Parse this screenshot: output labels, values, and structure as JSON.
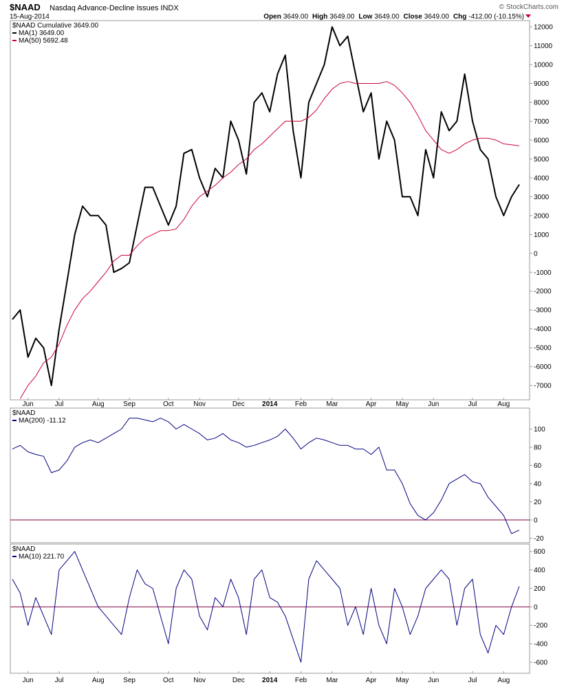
{
  "header": {
    "symbol": "$NAAD",
    "name": "Nasdaq Advance-Decline Issues INDX",
    "date": "15-Aug-2014",
    "watermark": "© StockCharts.com",
    "stats": [
      {
        "label": "Open",
        "value": "3649.00"
      },
      {
        "label": "High",
        "value": "3649.00"
      },
      {
        "label": "Low",
        "value": "3649.00"
      },
      {
        "label": "Close",
        "value": "3649.00"
      },
      {
        "label": "Chg",
        "value": "-412.00 (-10.15%)"
      }
    ]
  },
  "chart_data": [
    {
      "type": "line",
      "label": "$NAAD Cumulative 3649.00",
      "categories": [
        null,
        null,
        "Jun",
        null,
        null,
        null,
        "Jul",
        null,
        null,
        null,
        null,
        "Aug",
        null,
        null,
        null,
        "Sep",
        null,
        null,
        null,
        null,
        "Oct",
        null,
        null,
        null,
        "Nov",
        null,
        null,
        null,
        null,
        "Dec",
        null,
        null,
        null,
        "2014",
        null,
        null,
        null,
        "Feb",
        null,
        null,
        null,
        "Mar",
        null,
        null,
        null,
        null,
        "Apr",
        null,
        null,
        null,
        "May",
        null,
        null,
        null,
        "Jun",
        null,
        null,
        null,
        null,
        "Jul",
        null,
        null,
        null,
        "Aug",
        null,
        null
      ],
      "series": [
        {
          "name": "MA(1) 3649.00",
          "color": "#000000",
          "values": [
            -3500,
            -3000,
            -5500,
            -4500,
            -5000,
            -7000,
            -4000,
            -1500,
            1000,
            2500,
            2000,
            2000,
            1500,
            -1000,
            -800,
            -500,
            1500,
            3500,
            3500,
            2500,
            1500,
            2500,
            5300,
            5500,
            4000,
            3000,
            4500,
            4000,
            7000,
            6000,
            4200,
            8000,
            8500,
            7500,
            9500,
            10500,
            6500,
            4000,
            8000,
            9000,
            10000,
            12000,
            11000,
            11500,
            9500,
            7500,
            8500,
            5000,
            7000,
            6000,
            3000,
            3000,
            2000,
            5500,
            4000,
            7500,
            6500,
            7000,
            9500,
            7000,
            5500,
            5000,
            3000,
            2000,
            3000,
            3649
          ]
        },
        {
          "name": "MA(50) 5692.48",
          "color": "#cc0033",
          "values": [
            null,
            -7700,
            -7000,
            -6500,
            -5800,
            -5500,
            -4800,
            -3800,
            -3000,
            -2400,
            -2000,
            -1500,
            -1000,
            -400,
            -100,
            -100,
            400,
            800,
            1000,
            1200,
            1200,
            1300,
            1800,
            2500,
            3000,
            3300,
            3600,
            4000,
            4300,
            4700,
            5000,
            5500,
            5800,
            6200,
            6600,
            7000,
            7000,
            7000,
            7200,
            7600,
            8200,
            8700,
            9000,
            9100,
            9000,
            9000,
            9000,
            9000,
            9100,
            8900,
            8500,
            8000,
            7300,
            6500,
            6000,
            5500,
            5300,
            5500,
            5800,
            6000,
            6100,
            6100,
            6000,
            5800,
            5750,
            5692.48
          ]
        }
      ],
      "ylim": [
        -7760,
        12330
      ],
      "yticks": [
        -7000,
        -6000,
        -5000,
        -4000,
        -3000,
        -2000,
        -1000,
        0,
        1000,
        2000,
        3000,
        4000,
        5000,
        6000,
        7000,
        8000,
        9000,
        10000,
        11000,
        12000
      ]
    },
    {
      "type": "line",
      "label": "$NAAD",
      "series": [
        {
          "name": "MA(200) -11.12",
          "color": "#000080",
          "values": [
            78,
            82,
            75,
            72,
            70,
            52,
            55,
            65,
            80,
            85,
            88,
            85,
            90,
            95,
            100,
            112,
            112,
            110,
            108,
            112,
            108,
            100,
            105,
            100,
            95,
            88,
            90,
            95,
            88,
            85,
            80,
            82,
            85,
            88,
            92,
            100,
            90,
            78,
            85,
            90,
            88,
            85,
            82,
            82,
            78,
            78,
            72,
            80,
            55,
            55,
            40,
            18,
            5,
            0,
            8,
            22,
            40,
            45,
            50,
            42,
            40,
            25,
            15,
            5,
            -15,
            -11.12
          ]
        }
      ],
      "ylim": [
        -25,
        123
      ],
      "yticks": [
        -20,
        0,
        20,
        40,
        60,
        80,
        100
      ],
      "reference_line": 0
    },
    {
      "type": "line",
      "label": "$NAAD",
      "categories": [
        null,
        null,
        "Jun",
        null,
        null,
        null,
        "Jul",
        null,
        null,
        null,
        null,
        "Aug",
        null,
        null,
        null,
        "Sep",
        null,
        null,
        null,
        null,
        "Oct",
        null,
        null,
        null,
        "Nov",
        null,
        null,
        null,
        null,
        "Dec",
        null,
        null,
        null,
        "2014",
        null,
        null,
        null,
        "Feb",
        null,
        null,
        null,
        "Mar",
        null,
        null,
        null,
        null,
        "Apr",
        null,
        null,
        null,
        "May",
        null,
        null,
        null,
        "Jun",
        null,
        null,
        null,
        null,
        "Jul",
        null,
        null,
        null,
        "Aug",
        null,
        null
      ],
      "series": [
        {
          "name": "MA(10) 221.70",
          "color": "#000080",
          "values": [
            300,
            150,
            -200,
            100,
            -100,
            -300,
            400,
            500,
            600,
            400,
            200,
            0,
            -100,
            -200,
            -300,
            100,
            400,
            250,
            200,
            -100,
            -400,
            200,
            400,
            300,
            -100,
            -250,
            100,
            0,
            300,
            100,
            -300,
            300,
            400,
            100,
            50,
            -100,
            -350,
            -600,
            300,
            500,
            400,
            300,
            200,
            -200,
            0,
            -300,
            200,
            -200,
            -400,
            200,
            0,
            -300,
            -100,
            200,
            300,
            400,
            300,
            -200,
            200,
            300,
            -300,
            -500,
            -200,
            -300,
            0,
            221.7
          ]
        }
      ],
      "ylim": [
        -720,
        680
      ],
      "yticks": [
        -600,
        -400,
        -200,
        0,
        200,
        400,
        600
      ],
      "reference_line": 0
    }
  ]
}
